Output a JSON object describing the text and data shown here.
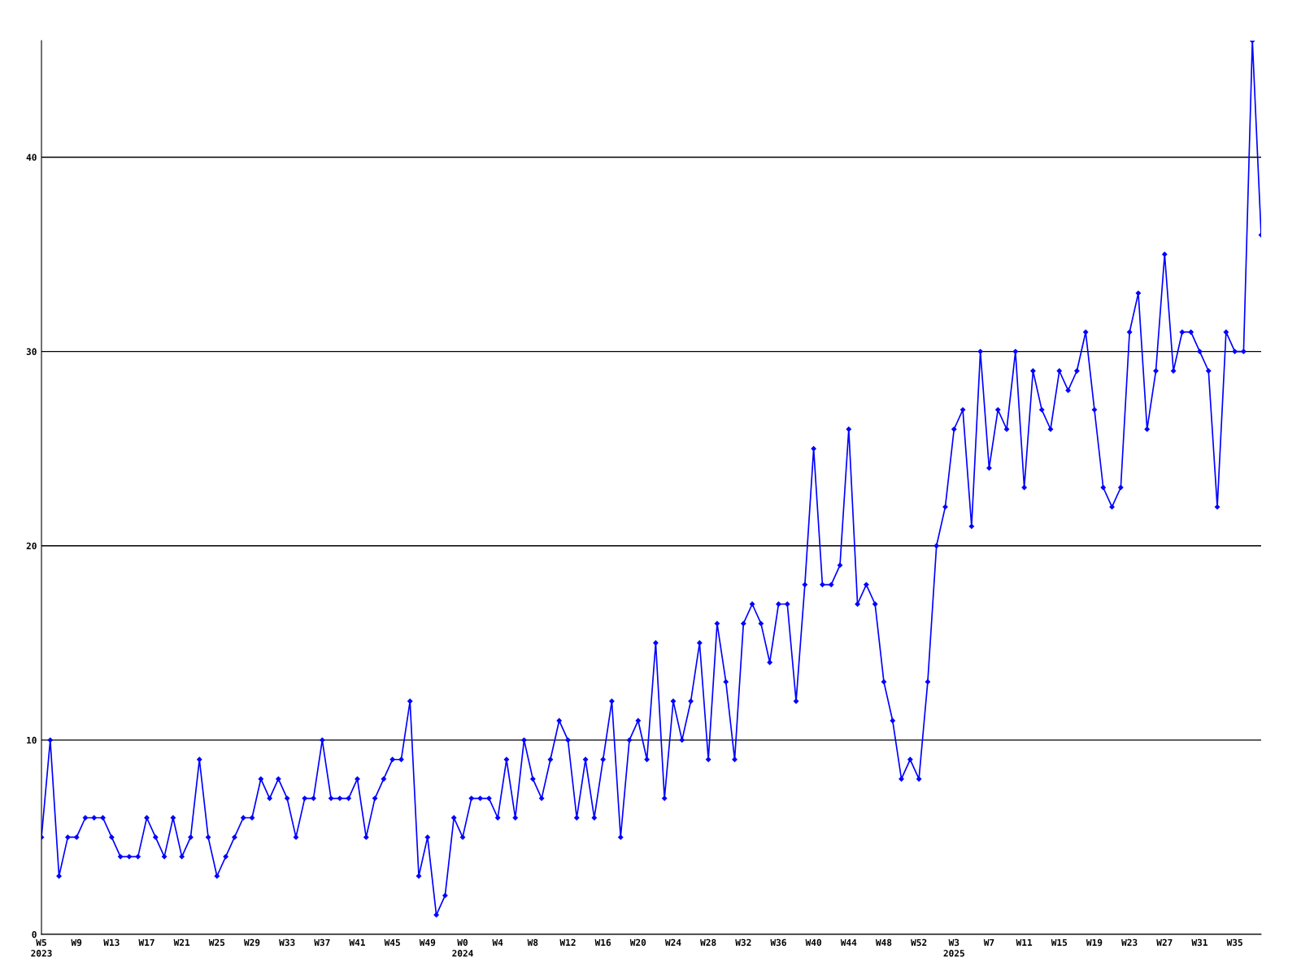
{
  "chart_data": {
    "type": "line",
    "categories": [
      "W5\n2023",
      null,
      null,
      null,
      "W9",
      null,
      null,
      null,
      "W13",
      null,
      null,
      null,
      "W17",
      null,
      null,
      null,
      "W21",
      null,
      null,
      null,
      "W25",
      null,
      null,
      null,
      "W29",
      null,
      null,
      null,
      "W33",
      null,
      null,
      null,
      "W37",
      null,
      null,
      null,
      "W41",
      null,
      null,
      null,
      "W45",
      null,
      null,
      null,
      "W49",
      null,
      null,
      null,
      "W0\n2024",
      null,
      null,
      null,
      "W4",
      null,
      null,
      null,
      "W8",
      null,
      null,
      null,
      "W12",
      null,
      null,
      null,
      "W16",
      null,
      null,
      null,
      "W20",
      null,
      null,
      null,
      "W24",
      null,
      null,
      null,
      "W28",
      null,
      null,
      null,
      "W32",
      null,
      null,
      null,
      "W36",
      null,
      null,
      null,
      "W40",
      null,
      null,
      null,
      "W44",
      null,
      null,
      null,
      "W48",
      null,
      null,
      null,
      "W52",
      null,
      null,
      null,
      "W3\n2025",
      null,
      null,
      null,
      "W7",
      null,
      null,
      null,
      "W11",
      null,
      null,
      null,
      "W15",
      null,
      null,
      null,
      "W19",
      null,
      null,
      null,
      "W23",
      null,
      null,
      null,
      "W27",
      null,
      null,
      null,
      "W31",
      null,
      null,
      null,
      "W35",
      null,
      null,
      null
    ],
    "series": [
      {
        "color": "#0000ff",
        "values": [
          5,
          10,
          3,
          5,
          5,
          6,
          6,
          6,
          5,
          4,
          4,
          4,
          6,
          5,
          4,
          6,
          4,
          5,
          9,
          5,
          3,
          4,
          5,
          6,
          6,
          8,
          7,
          8,
          7,
          5,
          7,
          7,
          10,
          7,
          7,
          7,
          8,
          5,
          7,
          8,
          9,
          9,
          12,
          3,
          5,
          1,
          2,
          6,
          5,
          7,
          7,
          7,
          6,
          9,
          6,
          10,
          8,
          7,
          9,
          11,
          10,
          6,
          9,
          6,
          9,
          12,
          5,
          10,
          11,
          9,
          15,
          7,
          12,
          10,
          12,
          15,
          9,
          16,
          13,
          9,
          16,
          17,
          16,
          14,
          17,
          17,
          12,
          18,
          25,
          18,
          18,
          19,
          26,
          17,
          18,
          17,
          13,
          11,
          8,
          9,
          8,
          13,
          20,
          22,
          26,
          27,
          21,
          30,
          24,
          27,
          26,
          30,
          23,
          29,
          27,
          26,
          29,
          28,
          29,
          31,
          27,
          23,
          22,
          23,
          31,
          33,
          26,
          29,
          35,
          29,
          31,
          31,
          30,
          29,
          22,
          31,
          30,
          30,
          46,
          36
        ]
      }
    ],
    "ylim": [
      0,
      46
    ],
    "yticks": [
      0,
      10,
      20,
      30,
      40
    ],
    "grid": "y",
    "marker": "diamond",
    "line_style": "solid"
  }
}
